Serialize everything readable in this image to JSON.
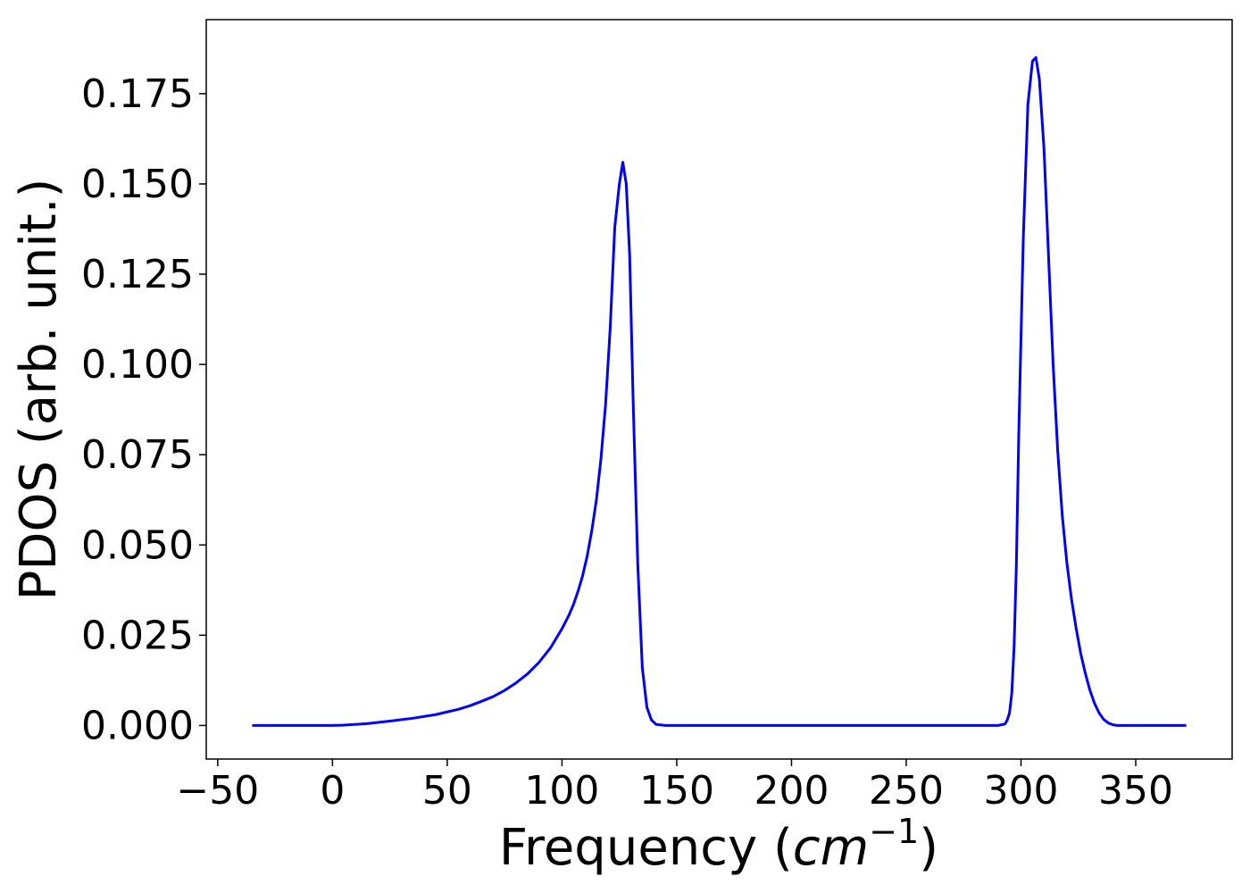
{
  "chart_data": {
    "type": "line",
    "xlabel": {
      "prefix": "Frequency (",
      "unit_base": "cm",
      "unit_exponent": "−1",
      "suffix": ")"
    },
    "ylabel": "PDOS (arb. unit.)",
    "xlim": [
      -55,
      392
    ],
    "ylim": [
      -0.0093,
      0.1955
    ],
    "xticks": [
      -50,
      0,
      50,
      100,
      150,
      200,
      250,
      300,
      350
    ],
    "xtick_labels": [
      "−50",
      "0",
      "50",
      "100",
      "150",
      "200",
      "250",
      "300",
      "350"
    ],
    "yticks": [
      0.0,
      0.025,
      0.05,
      0.075,
      0.1,
      0.125,
      0.15,
      0.175
    ],
    "ytick_labels": [
      "0.000",
      "0.025",
      "0.050",
      "0.075",
      "0.100",
      "0.125",
      "0.150",
      "0.175"
    ],
    "grid": false,
    "legend": false,
    "series": [
      {
        "color": "#0000ff",
        "x": [
          -35,
          -20,
          0,
          5,
          15,
          25,
          35,
          45,
          55,
          60,
          65,
          70,
          75,
          80,
          85,
          90,
          95,
          100,
          103,
          105,
          107,
          109,
          111,
          113,
          115,
          117,
          119,
          121,
          123,
          125,
          126.5,
          128,
          129.5,
          131,
          133,
          135,
          137,
          139,
          141,
          145,
          150,
          200,
          250,
          280,
          290,
          293,
          294,
          295,
          296,
          297,
          298,
          299,
          301,
          303,
          305,
          306.5,
          308,
          310,
          312,
          314,
          316,
          318,
          320,
          322,
          324,
          326,
          328,
          330,
          332,
          334,
          336,
          338,
          340,
          342,
          345,
          350,
          360,
          372
        ],
        "y": [
          0.0,
          0.0,
          0.0,
          0.0001,
          0.0005,
          0.0012,
          0.002,
          0.003,
          0.0045,
          0.0055,
          0.0067,
          0.008,
          0.0097,
          0.0118,
          0.0143,
          0.0175,
          0.0215,
          0.0268,
          0.0305,
          0.0335,
          0.0372,
          0.0415,
          0.047,
          0.054,
          0.0625,
          0.074,
          0.089,
          0.11,
          0.138,
          0.15,
          0.156,
          0.15,
          0.13,
          0.09,
          0.045,
          0.016,
          0.005,
          0.0015,
          0.0003,
          0.0,
          0.0,
          0.0,
          0.0,
          0.0,
          0.0,
          0.0004,
          0.0015,
          0.0035,
          0.009,
          0.022,
          0.045,
          0.08,
          0.135,
          0.172,
          0.184,
          0.185,
          0.179,
          0.16,
          0.13,
          0.1,
          0.076,
          0.058,
          0.045,
          0.035,
          0.027,
          0.02,
          0.0145,
          0.0098,
          0.0062,
          0.0035,
          0.0017,
          0.0007,
          0.0002,
          0.0,
          0.0,
          0.0,
          0.0,
          0.0
        ]
      }
    ]
  }
}
